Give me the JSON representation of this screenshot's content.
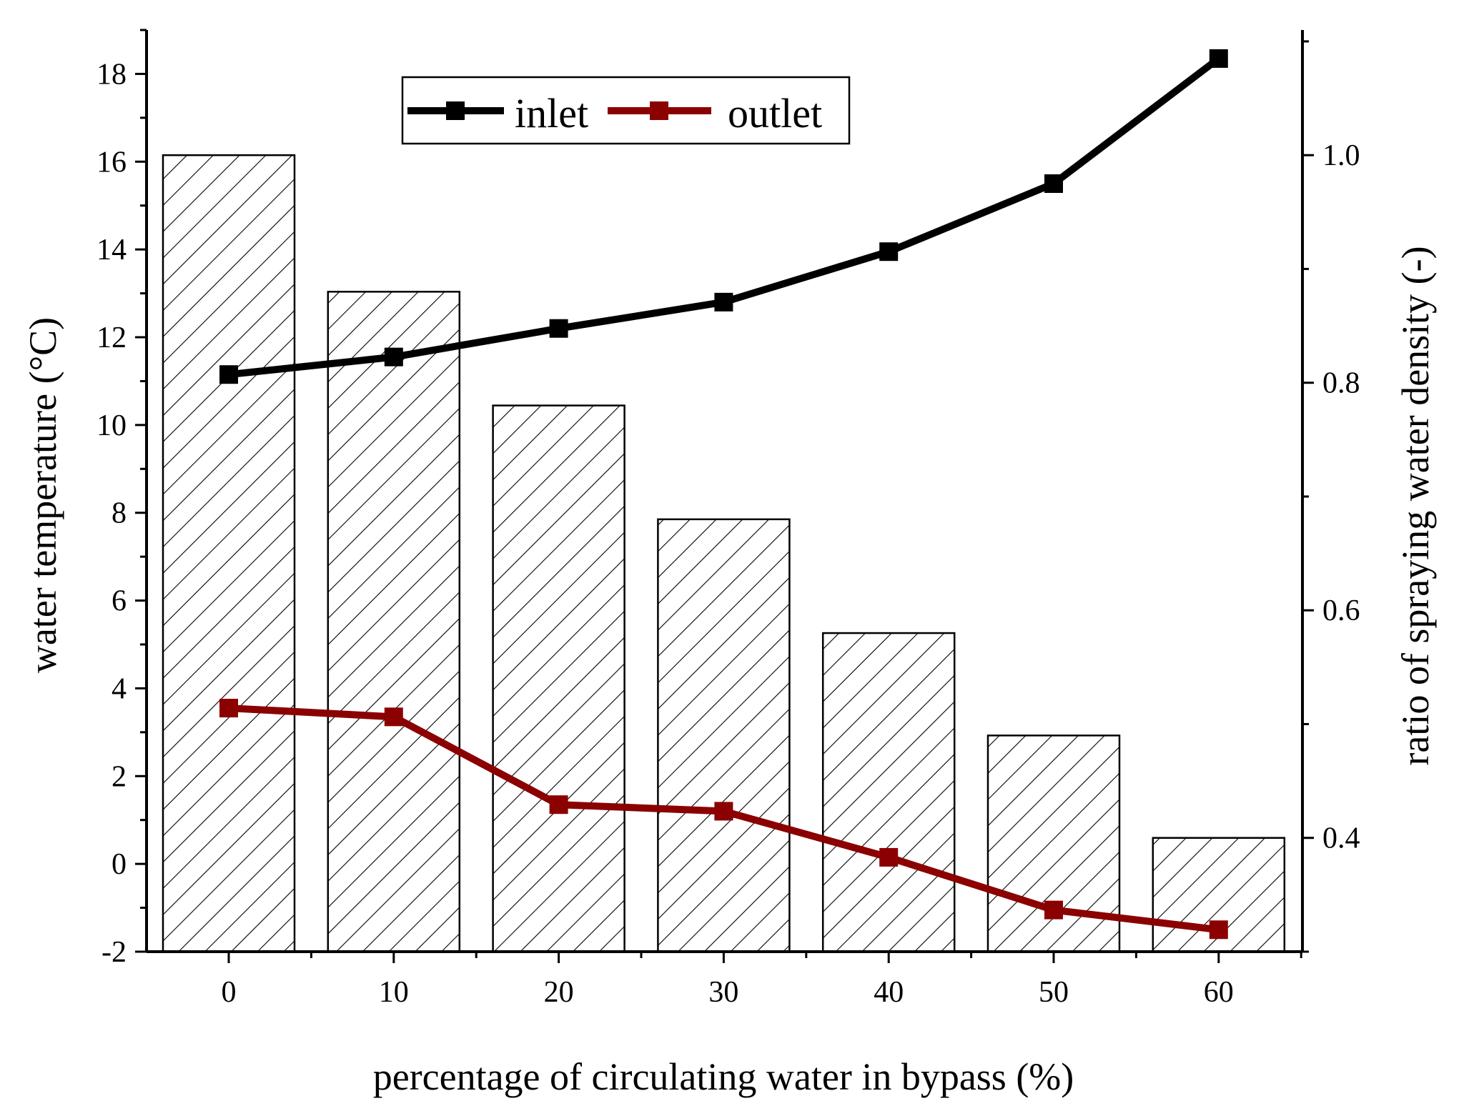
{
  "chart_data": {
    "type": "bar+line",
    "x": [
      0,
      10,
      20,
      30,
      40,
      50,
      60
    ],
    "xlabel": "percentage of circulating water in bypass (%)",
    "ylabel_left": "water temperature (°C)",
    "ylabel_right": "ratio of spraying water density (-)",
    "x_ticks": [
      "0",
      "10",
      "20",
      "30",
      "40",
      "50",
      "60"
    ],
    "ylim_left": [
      -2,
      19
    ],
    "y_ticks_left": [
      "-2",
      "0",
      "2",
      "4",
      "6",
      "8",
      "10",
      "12",
      "14",
      "16",
      "18"
    ],
    "ylim_right": [
      0.3,
      1.11
    ],
    "y_ticks_right": [
      "0.4",
      "0.6",
      "0.8",
      "1.0"
    ],
    "bars": {
      "axis": "right",
      "fill": "diagonal hatch",
      "values": [
        1.0,
        0.88,
        0.78,
        0.68,
        0.58,
        0.49,
        0.4
      ]
    },
    "series": [
      {
        "name": "inlet",
        "axis": "left",
        "color": "#000000",
        "marker": "square",
        "values": [
          11.15,
          11.55,
          12.2,
          12.8,
          13.95,
          15.5,
          18.35
        ]
      },
      {
        "name": "outlet",
        "axis": "left",
        "color": "#8b0000",
        "marker": "square",
        "values": [
          3.55,
          3.35,
          1.35,
          1.2,
          0.15,
          -1.05,
          -1.5
        ]
      }
    ],
    "legend": {
      "placement": "top-center",
      "entries": [
        "inlet",
        "outlet"
      ]
    },
    "grid": false
  }
}
